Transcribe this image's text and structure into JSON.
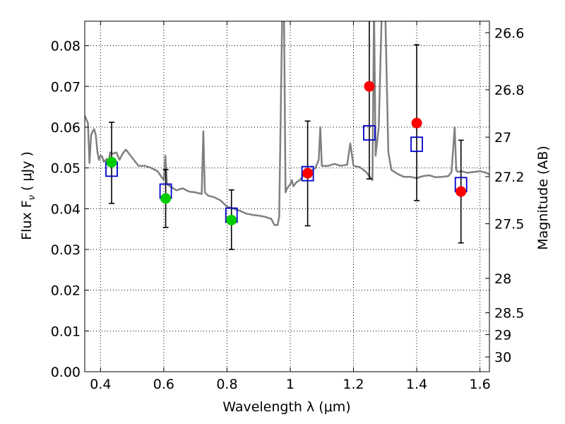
{
  "chart_data": {
    "type": "scatter",
    "title": "",
    "xlabel": "Wavelength  λ (μm)",
    "ylabel": "Flux  F",
    "ylabel_sub": "ν",
    "ylabel_unit": "( μJy )",
    "y2label": "Magnitude (AB)",
    "xlim": [
      0.35,
      1.63
    ],
    "ylim": [
      0.0,
      0.086
    ],
    "grid": true,
    "x_ticks": [
      0.4,
      0.6,
      0.8,
      1.0,
      1.2,
      1.4,
      1.6
    ],
    "x_tick_labels": [
      "0.4",
      "0.6",
      "0.8",
      "1",
      "1.2",
      "1.4",
      "1.6"
    ],
    "y_ticks": [
      0.0,
      0.01,
      0.02,
      0.03,
      0.04,
      0.05,
      0.06,
      0.07,
      0.08
    ],
    "y_tick_labels": [
      "0.00",
      "0.01",
      "0.02",
      "0.03",
      "0.04",
      "0.05",
      "0.06",
      "0.07",
      "0.08"
    ],
    "right_ticks": [
      26.6,
      26.8,
      27.0,
      27.2,
      27.5,
      28.0,
      28.5,
      29.0,
      30.0
    ],
    "right_tick_labels": [
      "26.6",
      "26.8",
      "27",
      "27.2",
      "27.5",
      "28",
      "28.5",
      "29",
      "30"
    ],
    "colors": {
      "spectrum": "#808080",
      "model_box": "#0000cc",
      "green": "#00cc00",
      "red": "#ff0000",
      "errorbar": "#000000",
      "grid": "#000000"
    },
    "series": [
      {
        "kind": "observed",
        "x": [
          0.435,
          0.606,
          0.814,
          1.055,
          1.25,
          1.4,
          1.54
        ],
        "y": [
          0.0514,
          0.0425,
          0.0372,
          0.0487,
          0.07,
          0.061,
          0.0442
        ],
        "yerr_low": [
          0.0413,
          0.0354,
          0.03,
          0.0358,
          0.0473,
          0.042,
          0.0316
        ],
        "yerr_high": [
          0.0612,
          0.0496,
          0.0446,
          0.0615,
          0.087,
          0.0802,
          0.0568
        ],
        "point_colors": [
          "green",
          "green",
          "green",
          "red",
          "red",
          "red",
          "red"
        ]
      },
      {
        "kind": "model",
        "x": [
          0.435,
          0.606,
          0.814,
          1.055,
          1.25,
          1.4,
          1.54
        ],
        "y": [
          0.0497,
          0.0443,
          0.0384,
          0.0486,
          0.0586,
          0.0558,
          0.0459
        ]
      },
      {
        "kind": "spectrum",
        "x": [
          0.35,
          0.36,
          0.365,
          0.37,
          0.375,
          0.38,
          0.385,
          0.39,
          0.395,
          0.4,
          0.405,
          0.41,
          0.42,
          0.425,
          0.43,
          0.44,
          0.45,
          0.46,
          0.47,
          0.48,
          0.49,
          0.5,
          0.52,
          0.54,
          0.56,
          0.58,
          0.6,
          0.605,
          0.61,
          0.62,
          0.64,
          0.66,
          0.68,
          0.7,
          0.72,
          0.725,
          0.73,
          0.74,
          0.76,
          0.78,
          0.8,
          0.82,
          0.84,
          0.86,
          0.88,
          0.9,
          0.92,
          0.94,
          0.95,
          0.955,
          0.96,
          0.965,
          0.975,
          0.98,
          0.985,
          0.99,
          1.0,
          1.005,
          1.01,
          1.02,
          1.03,
          1.04,
          1.05,
          1.06,
          1.08,
          1.09,
          1.095,
          1.1,
          1.12,
          1.14,
          1.16,
          1.18,
          1.19,
          1.2,
          1.22,
          1.24,
          1.25,
          1.26,
          1.265,
          1.27,
          1.28,
          1.29,
          1.295,
          1.3,
          1.31,
          1.32,
          1.34,
          1.36,
          1.38,
          1.4,
          1.42,
          1.44,
          1.46,
          1.48,
          1.5,
          1.51,
          1.52,
          1.525,
          1.53,
          1.54,
          1.56,
          1.58,
          1.6,
          1.62,
          1.63
        ],
        "y": [
          0.0628,
          0.061,
          0.0512,
          0.058,
          0.059,
          0.0595,
          0.058,
          0.054,
          0.052,
          0.053,
          0.0528,
          0.0515,
          0.0522,
          0.0505,
          0.0538,
          0.0535,
          0.0538,
          0.052,
          0.0535,
          0.0545,
          0.0535,
          0.0525,
          0.0505,
          0.0505,
          0.05,
          0.0492,
          0.047,
          0.053,
          0.046,
          0.0455,
          0.0445,
          0.045,
          0.0442,
          0.044,
          0.0436,
          0.059,
          0.044,
          0.0432,
          0.0428,
          0.042,
          0.0405,
          0.04,
          0.0395,
          0.0388,
          0.0385,
          0.0383,
          0.038,
          0.0375,
          0.036,
          0.036,
          0.036,
          0.038,
          0.09,
          0.09,
          0.044,
          0.045,
          0.046,
          0.047,
          0.0455,
          0.0465,
          0.047,
          0.048,
          0.0482,
          0.049,
          0.05,
          0.052,
          0.06,
          0.0505,
          0.0505,
          0.051,
          0.0505,
          0.0508,
          0.056,
          0.0505,
          0.0502,
          0.049,
          0.048,
          0.047,
          0.09,
          0.053,
          0.06,
          0.09,
          0.09,
          0.09,
          0.054,
          0.0495,
          0.0485,
          0.0478,
          0.0478,
          0.0475,
          0.048,
          0.0482,
          0.0477,
          0.0478,
          0.048,
          0.049,
          0.06,
          0.0495,
          0.049,
          0.0492,
          0.0488,
          0.049,
          0.0492,
          0.0488,
          0.0484
        ]
      }
    ]
  }
}
